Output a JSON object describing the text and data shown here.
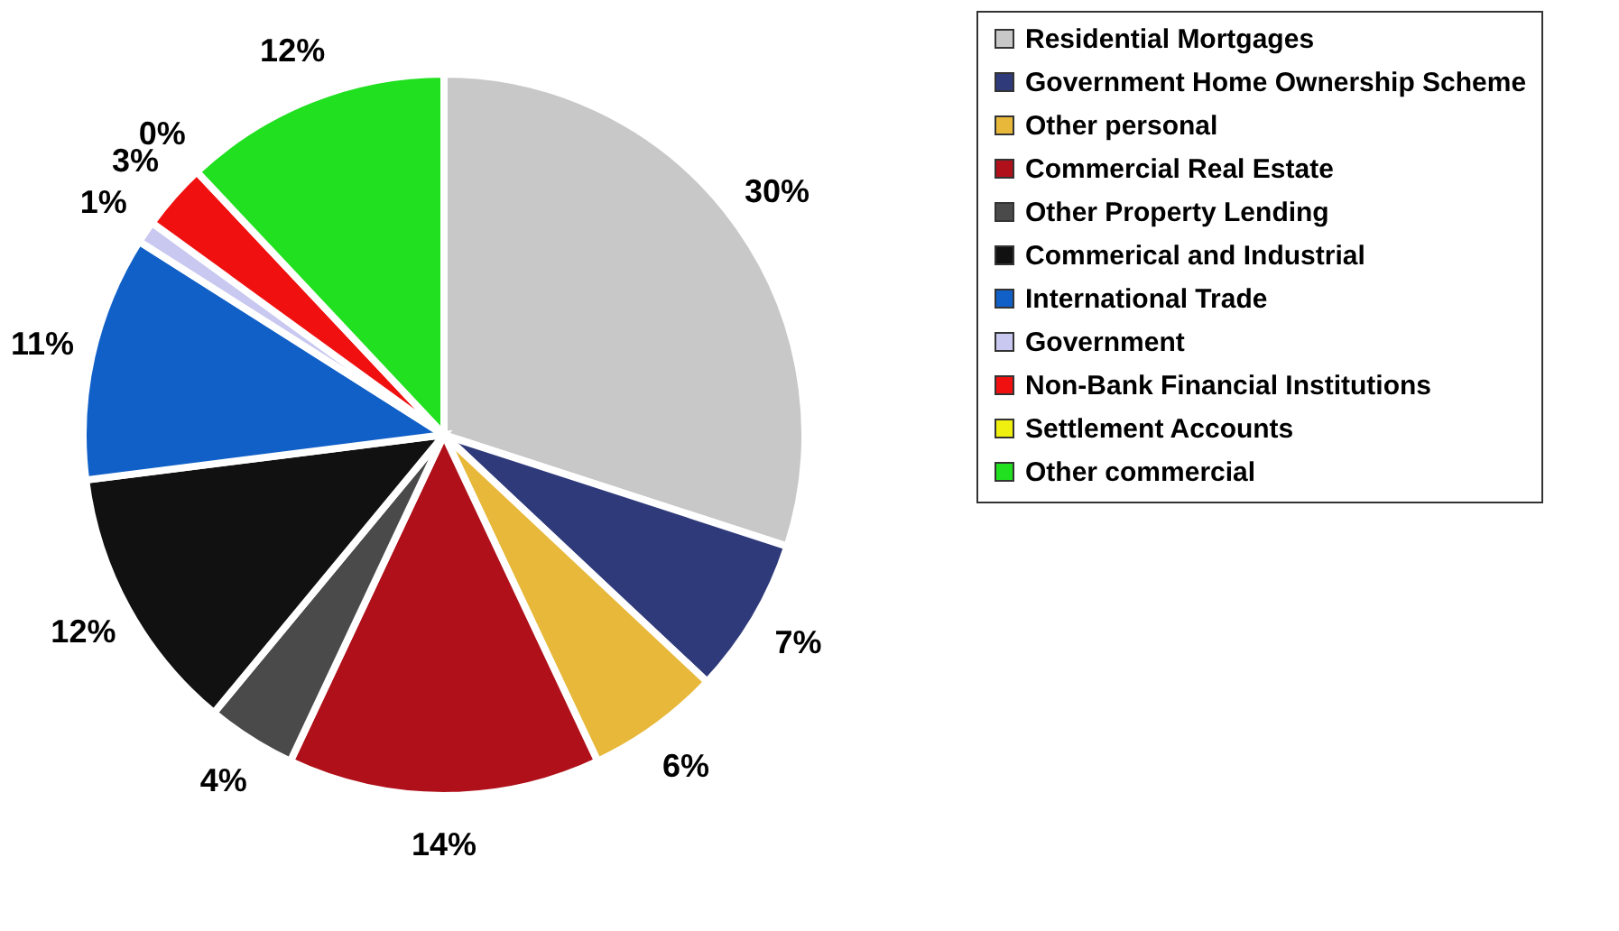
{
  "chart_data": {
    "type": "pie",
    "categories": [
      "Residential Mortgages",
      "Government Home Ownership Scheme",
      "Other personal",
      "Commercial Real Estate",
      "Other Property Lending",
      "Commerical and Industrial",
      "International Trade",
      "Government",
      "Non-Bank Financial Institutions",
      "Settlement Accounts",
      "Other commercial"
    ],
    "values": [
      30,
      7,
      6,
      14,
      4,
      12,
      11,
      1,
      3,
      0,
      12
    ],
    "value_labels": [
      "30%",
      "7%",
      "6%",
      "14%",
      "4%",
      "12%",
      "11%",
      "1%",
      "3%",
      "0%",
      "12%"
    ],
    "colors": [
      "#c8c8c8",
      "#2e3a7a",
      "#e8b83a",
      "#b0101a",
      "#4a4a4a",
      "#111111",
      "#1060c8",
      "#c8c8f0",
      "#f01010",
      "#f0f010",
      "#20e020"
    ],
    "legend": "right"
  }
}
